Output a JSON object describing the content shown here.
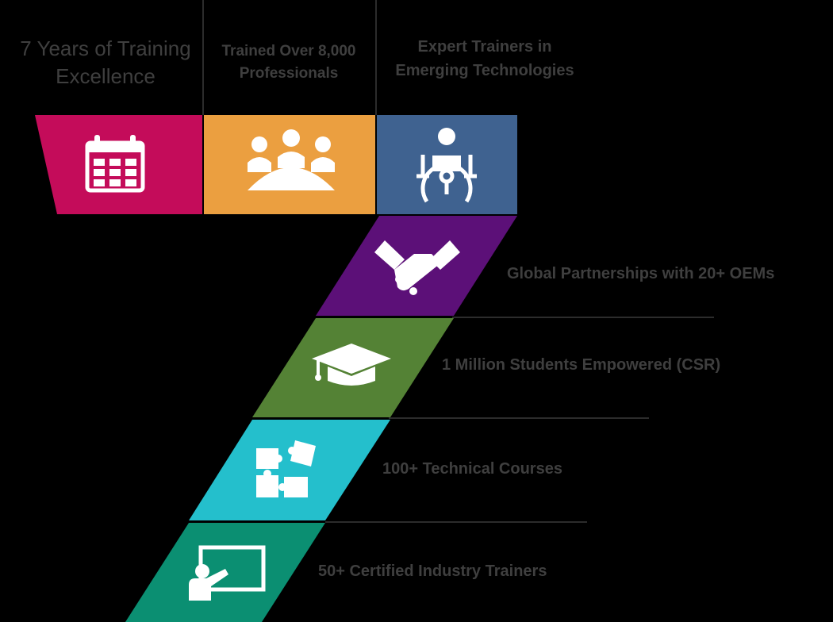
{
  "colors": {
    "background": "#000000",
    "text": "#3f3f3f",
    "magenta": "#c40c5a",
    "orange": "#eb9f40",
    "slate": "#3f6290",
    "purple": "#5c1078",
    "green": "#548235",
    "cyan": "#24bfcc",
    "teal": "#0b8f72",
    "icon": "#ffffff",
    "divider": "#3a3a3a"
  },
  "top": [
    {
      "line1": "7 Years of Training",
      "line2": "Excellence",
      "icon": "calendar-icon"
    },
    {
      "line1": "Trained Over 8,000",
      "line2": "Professionals",
      "icon": "team-meeting-icon"
    },
    {
      "line1": "Expert Trainers in",
      "line2": "Emerging Technologies",
      "icon": "trainer-gear-icon"
    }
  ],
  "rows": [
    {
      "label": "Global Partnerships with 20+ OEMs",
      "icon": "handshake-icon"
    },
    {
      "label": "1 Million Students Empowered (CSR)",
      "icon": "graduation-cap-icon"
    },
    {
      "label": "100+ Technical Courses",
      "icon": "puzzle-icon"
    },
    {
      "label": "50+ Certified Industry Trainers",
      "icon": "presentation-board-icon"
    }
  ]
}
